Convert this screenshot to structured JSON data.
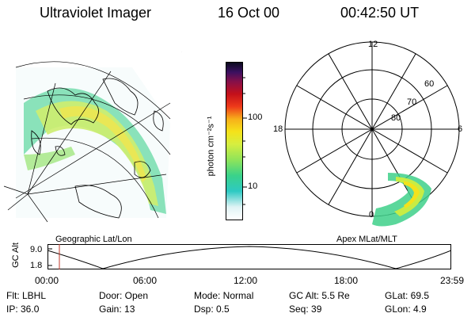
{
  "header": {
    "instrument": "Ultraviolet Imager",
    "date": "16 Oct 00",
    "time": "00:42:50 UT"
  },
  "panels": {
    "geographic_label": "Geographic Lat/Lon",
    "apex_label": "Apex MLat/MLT",
    "polar_labels": {
      "top": "12",
      "left": "18",
      "right": "6",
      "bottom": "0",
      "lat60": "60",
      "lat70": "70",
      "lat80": "80"
    }
  },
  "colorbar": {
    "unit": "photon cm⁻²s⁻¹",
    "ticks": [
      "100",
      "10"
    ]
  },
  "altitude_plot": {
    "ylabel": "GC Alt",
    "yticks": [
      "9.0",
      "1.8"
    ],
    "xticks": [
      "00:00",
      "06:00",
      "12:00",
      "18:00",
      "23:59"
    ],
    "current_marker_color": "#c0392b"
  },
  "info": {
    "filter": "Flt: LBHL",
    "ip": "IP: 36.0",
    "door": "Door: Open",
    "gain": "Gain: 13",
    "mode": "Mode: Normal",
    "dsp": "Dsp:     0.5",
    "gc_alt": "GC Alt: 5.5 Re",
    "seq": "Seq: 39",
    "glat": "GLat:     69.5",
    "glon": "GLon:      4.9"
  }
}
